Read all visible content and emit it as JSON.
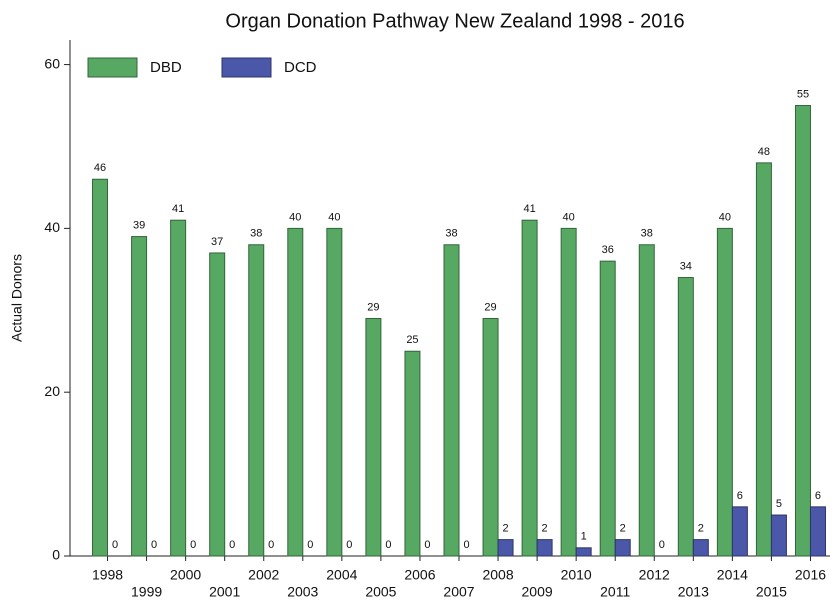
{
  "chart_data": {
    "type": "bar",
    "title": "Organ Donation Pathway New Zealand 1998 - 2016",
    "y_label": "Actual Donors",
    "categories": [
      "1998",
      "1999",
      "2000",
      "2001",
      "2002",
      "2003",
      "2004",
      "2005",
      "2006",
      "2007",
      "2008",
      "2009",
      "2010",
      "2011",
      "2012",
      "2013",
      "2014",
      "2015",
      "2016"
    ],
    "series": [
      {
        "name": "DBD",
        "color": "#56a862",
        "values": [
          46,
          39,
          41,
          37,
          38,
          40,
          40,
          29,
          25,
          38,
          29,
          41,
          40,
          36,
          38,
          34,
          40,
          48,
          55
        ]
      },
      {
        "name": "DCD",
        "color": "#4b57a8",
        "values": [
          0,
          0,
          0,
          0,
          0,
          0,
          0,
          0,
          0,
          0,
          2,
          2,
          1,
          2,
          0,
          2,
          6,
          5,
          6
        ]
      }
    ],
    "ylim": [
      0,
      63
    ],
    "yticks": [
      0,
      20,
      40,
      60
    ],
    "legend": "top-left"
  }
}
